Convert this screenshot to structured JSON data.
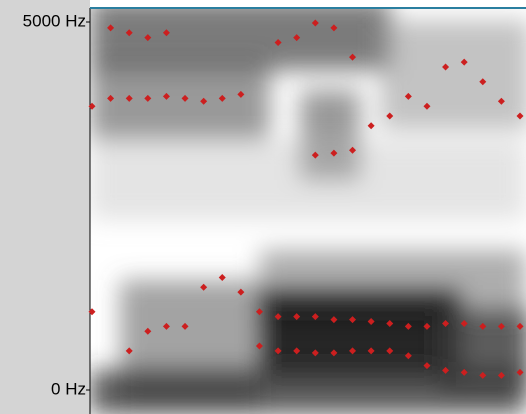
{
  "chart_data": {
    "type": "scatter",
    "ylim": [
      0,
      5000
    ],
    "yticks": [
      {
        "value": 0,
        "label": "0 Hz"
      },
      {
        "value": 5000,
        "label": "5000 Hz"
      }
    ],
    "series": [
      {
        "color": "#cc1f1f",
        "values": [
          1064,
          null,
          532,
          798,
          864,
          864,
          1396,
          1529,
          1330,
          1064,
          997,
          997,
          997,
          957,
          957,
          931,
          904,
          864,
          864,
          904,
          904,
          864,
          864,
          864
        ]
      },
      {
        "color": "#cc1f1f",
        "values": [
          null,
          null,
          null,
          null,
          null,
          null,
          null,
          null,
          null,
          598,
          532,
          532,
          505,
          505,
          532,
          532,
          532,
          465,
          332,
          266,
          239,
          199,
          199,
          239
        ]
      },
      {
        "color": "#cc1f1f",
        "values": [
          3856,
          3963,
          3963,
          3963,
          3989,
          3963,
          3923,
          3963,
          4016,
          null,
          null,
          null,
          3191,
          3218,
          3258,
          3590,
          3723,
          3989,
          3856,
          4388,
          4455,
          4189,
          3923,
          3723
        ]
      },
      {
        "color": "#cc1f1f",
        "values": [
          null,
          4921,
          4854,
          4788,
          4854,
          null,
          null,
          null,
          null,
          null,
          4721,
          4788,
          4987,
          4921,
          4522,
          null,
          null,
          null,
          null,
          null,
          null,
          null,
          null,
          null
        ]
      }
    ]
  }
}
